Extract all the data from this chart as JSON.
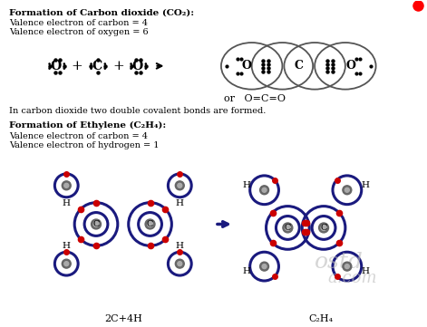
{
  "bg_color": "#ffffff",
  "title_co2": "Formation of Carbon dioxide (CO₂):",
  "text_co2_1": "Valence electron of carbon = 4",
  "text_co2_2": "Valence electron of oxygen = 6",
  "text_co2_3": "In carbon dioxide two double covalent bonds are formed.",
  "title_c2h4": "Formation of Ethylene (C₂H₄):",
  "text_c2h4_1": "Valence electron of carbon = 4",
  "text_c2h4_2": "Valence electron of hydrogen = 1",
  "label_2c4h": "2C+4H",
  "label_c2h4": "C₂H₄",
  "navy": "#1a1a7e",
  "red_dot": "#cc0000",
  "gray_nucleus": "#888888",
  "black": "#000000",
  "ellipse_color": "#555555",
  "watermark_color": "#bbbbbb"
}
